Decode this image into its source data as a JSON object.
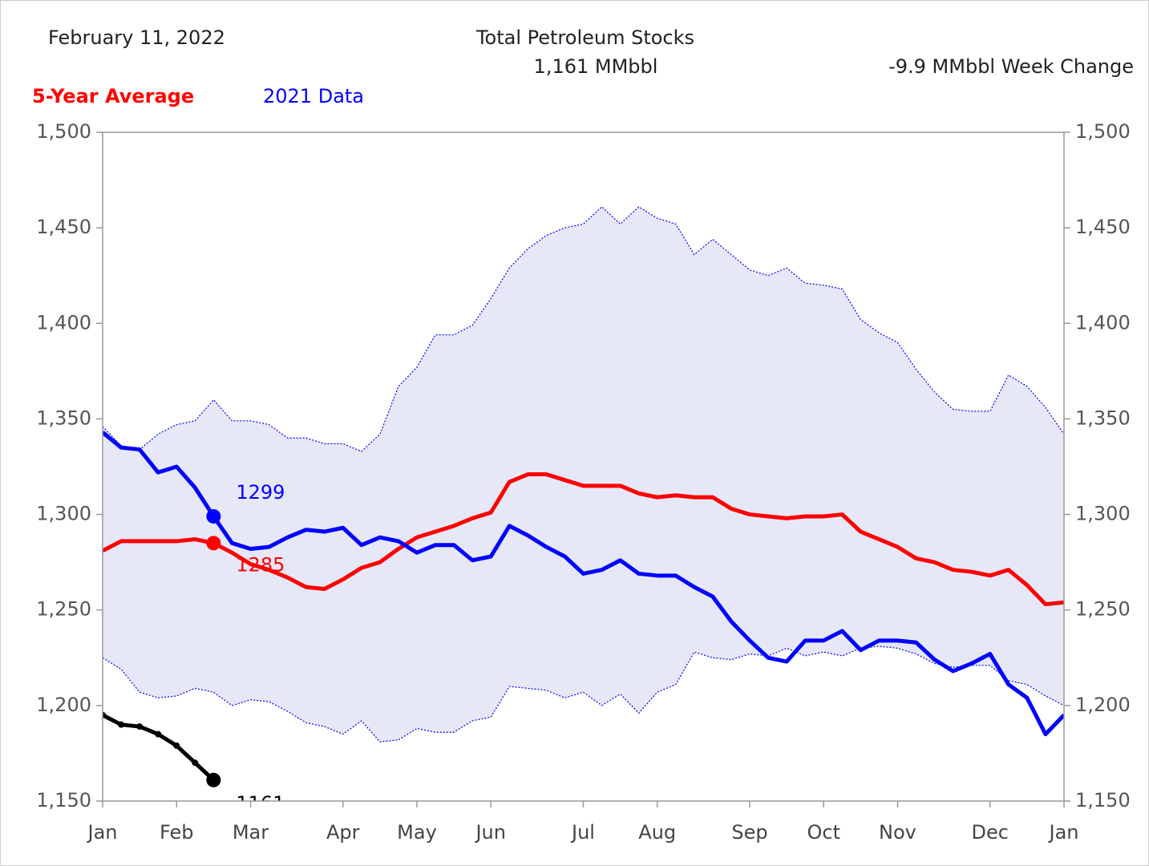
{
  "chart_data": {
    "type": "line",
    "date": "February 11, 2022",
    "title": "Total Petroleum Stocks",
    "subtitle": "1,161 MMbbl",
    "annotation": "-9.9 MMbbl Week Change",
    "categories": [
      "Jan",
      null,
      null,
      null,
      "Feb",
      null,
      null,
      null,
      "Mar",
      null,
      null,
      null,
      null,
      "Apr",
      null,
      null,
      null,
      "May",
      null,
      null,
      null,
      "Jun",
      null,
      null,
      null,
      null,
      "Jul",
      null,
      null,
      null,
      "Aug",
      null,
      null,
      null,
      null,
      "Sep",
      null,
      null,
      null,
      "Oct",
      null,
      null,
      null,
      "Nov",
      null,
      null,
      null,
      null,
      "Dec",
      null,
      null,
      null,
      "Jan"
    ],
    "series": [
      {
        "name": "5-Year Average",
        "color": "#ff0000",
        "label_index": 6,
        "values": [
          1281,
          1286,
          1286,
          1286,
          1286,
          1287,
          1285,
          1280,
          1274,
          1271,
          1267,
          1262,
          1261,
          1266,
          1272,
          1275,
          1282,
          1288,
          1291,
          1294,
          1298,
          1301,
          1317,
          1321,
          1321,
          1318,
          1315,
          1315,
          1315,
          1311,
          1309,
          1310,
          1309,
          1309,
          1303,
          1300,
          1299,
          1298,
          1299,
          1299,
          1300,
          1291,
          1287,
          1283,
          1277,
          1275,
          1271,
          1270,
          1268,
          1271,
          1263,
          1253,
          1254
        ]
      },
      {
        "name": "2021 Data",
        "color": "#0000ff",
        "label_index": 6,
        "values": [
          1343,
          1335,
          1334,
          1322,
          1325,
          1314,
          1299,
          1285,
          1282,
          1283,
          1288,
          1292,
          1291,
          1293,
          1284,
          1288,
          1286,
          1280,
          1284,
          1284,
          1276,
          1278,
          1294,
          1289,
          1283,
          1278,
          1269,
          1271,
          1276,
          1269,
          1268,
          1268,
          1262,
          1257,
          1244,
          1234,
          1225,
          1223,
          1234,
          1234,
          1239,
          1229,
          1234,
          1234,
          1233,
          1224,
          1218,
          1222,
          1227,
          1211,
          1204,
          1185,
          1195
        ]
      },
      {
        "color": "#000000",
        "label_index": 6,
        "values": [
          1195,
          1190,
          1189,
          1185,
          1179,
          1170,
          1161,
          null,
          null,
          null,
          null,
          null,
          null,
          null,
          null,
          null,
          null,
          null,
          null,
          null,
          null,
          null,
          null,
          null,
          null,
          null,
          null,
          null,
          null,
          null,
          null,
          null,
          null,
          null,
          null,
          null,
          null,
          null,
          null,
          null,
          null,
          null,
          null,
          null,
          null,
          null,
          null,
          null,
          null,
          null,
          null,
          null,
          null
        ]
      }
    ],
    "range": {
      "color": "#0000ff",
      "fill": "#e6e8f8",
      "upper": [
        1346,
        1336,
        1334,
        1342,
        1347,
        1349,
        1360,
        1349,
        1349,
        1347,
        1340,
        1340,
        1337,
        1337,
        1333,
        1342,
        1367,
        1377,
        1394,
        1394,
        1399,
        1413,
        1429,
        1439,
        1446,
        1450,
        1452,
        1461,
        1452,
        1461,
        1455,
        1452,
        1436,
        1444,
        1436,
        1428,
        1425,
        1429,
        1421,
        1420,
        1418,
        1402,
        1395,
        1390,
        1376,
        1364,
        1355,
        1354,
        1354,
        1373,
        1367,
        1356,
        1342
      ],
      "lower": [
        1225,
        1219,
        1207,
        1204,
        1205,
        1209,
        1207,
        1200,
        1203,
        1202,
        1197,
        1191,
        1189,
        1185,
        1192,
        1181,
        1182,
        1188,
        1186,
        1186,
        1192,
        1194,
        1210,
        1209,
        1208,
        1204,
        1207,
        1200,
        1206,
        1196,
        1207,
        1211,
        1228,
        1225,
        1224,
        1227,
        1226,
        1230,
        1226,
        1228,
        1226,
        1230,
        1231,
        1230,
        1227,
        1222,
        1220,
        1221,
        1221,
        1213,
        1211,
        1205,
        1200
      ]
    },
    "ylim": [
      1150,
      1500
    ],
    "yticks": [
      {
        "value": 1150,
        "label": "1,150"
      },
      {
        "value": 1200,
        "label": "1,200"
      },
      {
        "value": 1250,
        "label": "1,250"
      },
      {
        "value": 1300,
        "label": "1,300"
      },
      {
        "value": 1350,
        "label": "1,350"
      },
      {
        "value": 1400,
        "label": "1,400"
      },
      {
        "value": 1450,
        "label": "1,450"
      },
      {
        "value": 1500,
        "label": "1,500"
      }
    ],
    "right_axis": true
  }
}
